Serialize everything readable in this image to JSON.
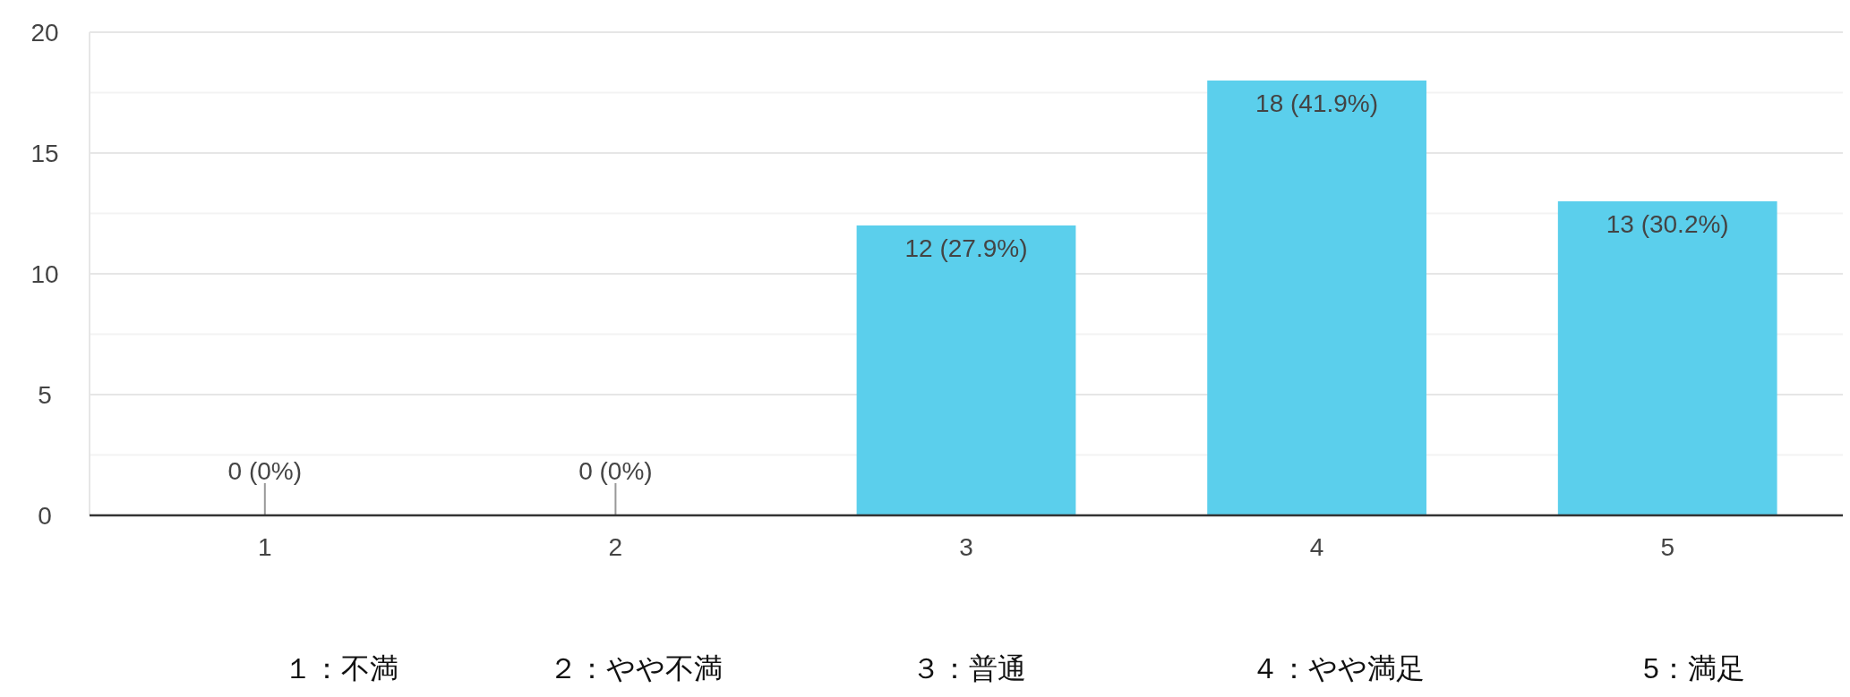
{
  "chart_data": {
    "type": "bar",
    "categories": [
      "1",
      "2",
      "3",
      "4",
      "5"
    ],
    "values": [
      0,
      0,
      12,
      18,
      13
    ],
    "color": "#5bcfec",
    "value_labels": [
      "0 (0%)",
      "0 (0%)",
      "12 (27.9%)",
      "18 (41.9%)",
      "13 (30.2%)"
    ],
    "ylim": [
      0,
      20
    ],
    "yticks": [
      0,
      {
        "value": 2.5,
        "label": null
      },
      5,
      {
        "value": 7.5,
        "label": null
      },
      10,
      {
        "value": 12.5,
        "label": null
      },
      15,
      {
        "value": 17.5,
        "label": null
      },
      20
    ],
    "grid": "y",
    "annotations": [
      "１：不満",
      "２：やや不満",
      "３：普通",
      "４：やや満足",
      "5：満足"
    ]
  }
}
